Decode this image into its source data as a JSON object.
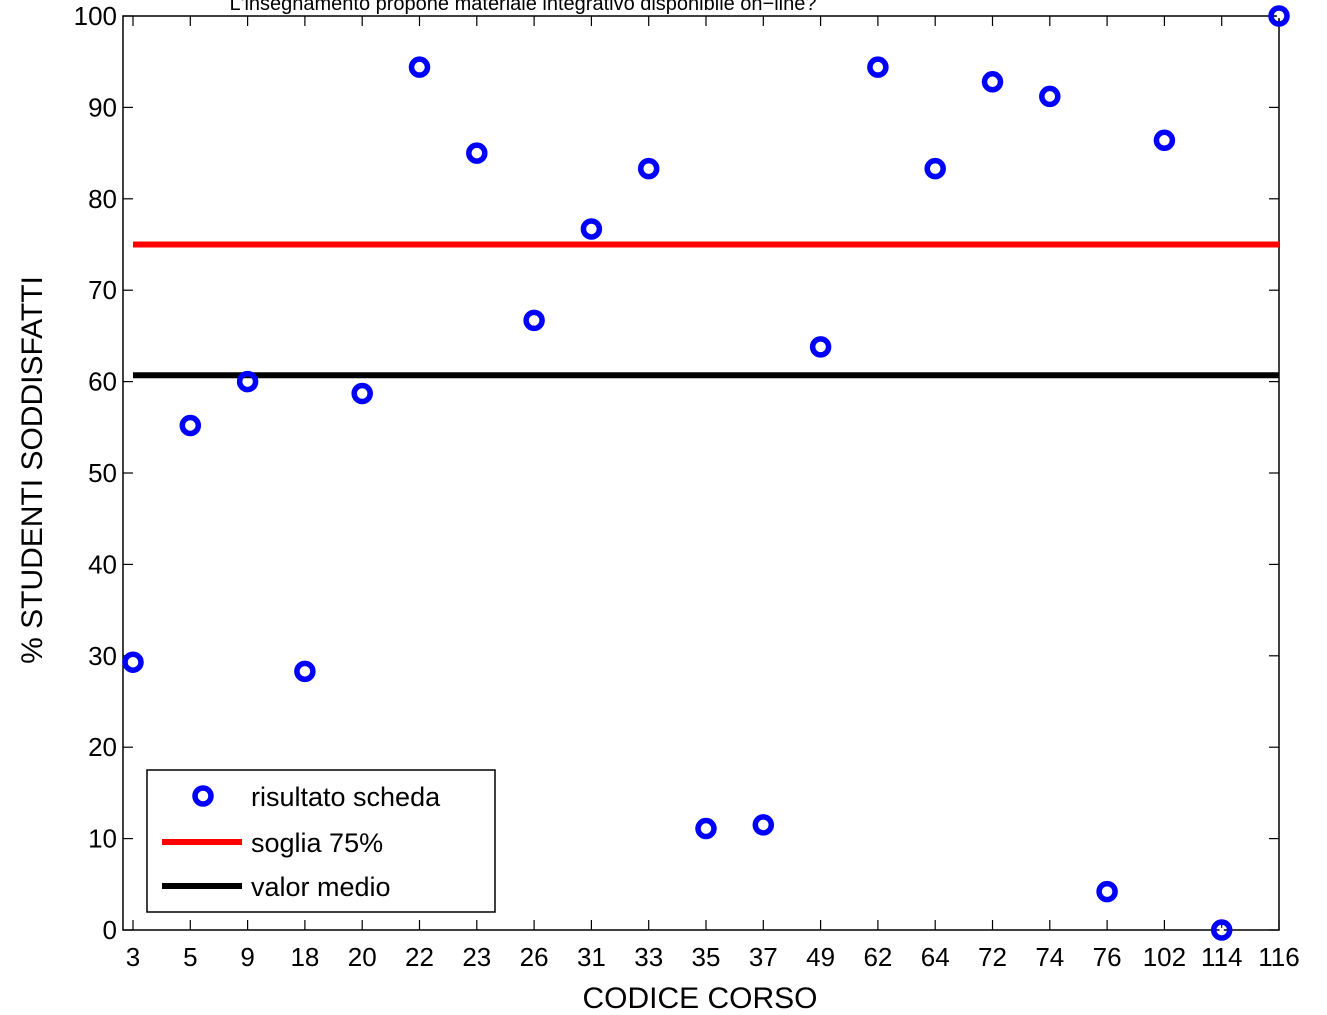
{
  "chart_data": {
    "type": "scatter",
    "title": "L'insegnamento propone materiale integrativo disponibile on−line?",
    "xlabel": "CODICE CORSO",
    "ylabel": "% STUDENTI SODDISFATTI",
    "categories": [
      "3",
      "5",
      "9",
      "18",
      "20",
      "22",
      "23",
      "26",
      "31",
      "33",
      "35",
      "37",
      "49",
      "62",
      "64",
      "72",
      "74",
      "76",
      "102",
      "114",
      "116"
    ],
    "ylim": [
      0,
      100
    ],
    "yticks": [
      0,
      10,
      20,
      30,
      40,
      50,
      60,
      70,
      80,
      90,
      100
    ],
    "grid": false,
    "legend_position": "bottom-left",
    "series": [
      {
        "name": "risultato scheda",
        "kind": "points",
        "color": "#0000ff",
        "values": [
          29.3,
          55.2,
          60.0,
          28.3,
          58.7,
          94.4,
          85.0,
          66.7,
          76.7,
          83.3,
          11.1,
          11.5,
          63.8,
          94.4,
          83.3,
          92.8,
          91.2,
          4.2,
          86.4,
          0.0,
          100.0
        ]
      },
      {
        "name": "soglia 75%",
        "kind": "hline",
        "color": "#ff0000",
        "value": 75
      },
      {
        "name": "valor medio",
        "kind": "hline",
        "color": "#000000",
        "value": 60.7
      }
    ]
  }
}
